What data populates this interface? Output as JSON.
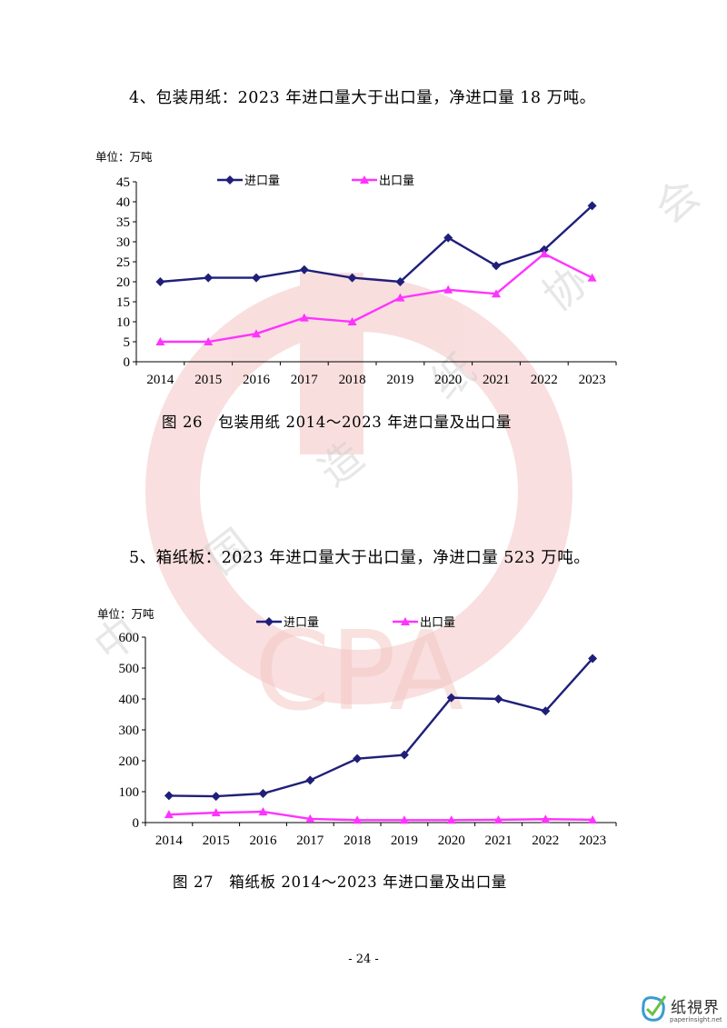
{
  "headings": {
    "section4": "4、包装用纸：2023 年进口量大于出口量，净进口量 18 万吨。",
    "section5": "5、箱纸板：2023 年进口量大于出口量，净进口量 523 万吨。"
  },
  "captions": {
    "fig26": "图 26　包装用纸 2014～2023 年进口量及出口量",
    "fig27": "图 27　箱纸板 2014～2023 年进口量及出口量"
  },
  "page_number": "- 24 -",
  "watermark": {
    "logo_text": "CPA",
    "org_text": "中 国 造 纸 协 会",
    "color": "#e8a8a0"
  },
  "brand": {
    "name": "纸視界",
    "url": "paperinsight.net",
    "color": "#3a9bd5"
  },
  "colors": {
    "import": "#1f1f7a",
    "export": "#ff33ff"
  },
  "chart_data": [
    {
      "type": "line",
      "unit_label": "单位：万吨",
      "categories": [
        "2014",
        "2015",
        "2016",
        "2017",
        "2018",
        "2019",
        "2020",
        "2021",
        "2022",
        "2023"
      ],
      "ylim": [
        0,
        45
      ],
      "yticks": [
        0,
        5,
        10,
        15,
        20,
        25,
        30,
        35,
        40,
        45
      ],
      "grid": false,
      "legend_position": "top",
      "series": [
        {
          "name": "进口量",
          "marker": "diamond",
          "values": [
            20,
            21,
            21,
            23,
            21,
            20,
            31,
            24,
            28,
            39
          ]
        },
        {
          "name": "出口量",
          "marker": "triangle",
          "values": [
            5,
            5,
            7,
            11,
            10,
            16,
            18,
            17,
            27,
            21
          ]
        }
      ]
    },
    {
      "type": "line",
      "unit_label": "单位：万吨",
      "categories": [
        "2014",
        "2015",
        "2016",
        "2017",
        "2018",
        "2019",
        "2020",
        "2021",
        "2022",
        "2023"
      ],
      "ylim": [
        0,
        600
      ],
      "yticks": [
        0,
        100,
        200,
        300,
        400,
        500,
        600
      ],
      "grid": false,
      "legend_position": "top",
      "series": [
        {
          "name": "进口量",
          "marker": "diamond",
          "values": [
            87,
            85,
            94,
            137,
            207,
            219,
            404,
            400,
            361,
            531
          ]
        },
        {
          "name": "出口量",
          "marker": "triangle",
          "values": [
            26,
            32,
            35,
            12,
            8,
            8,
            8,
            9,
            11,
            9
          ]
        }
      ]
    }
  ]
}
